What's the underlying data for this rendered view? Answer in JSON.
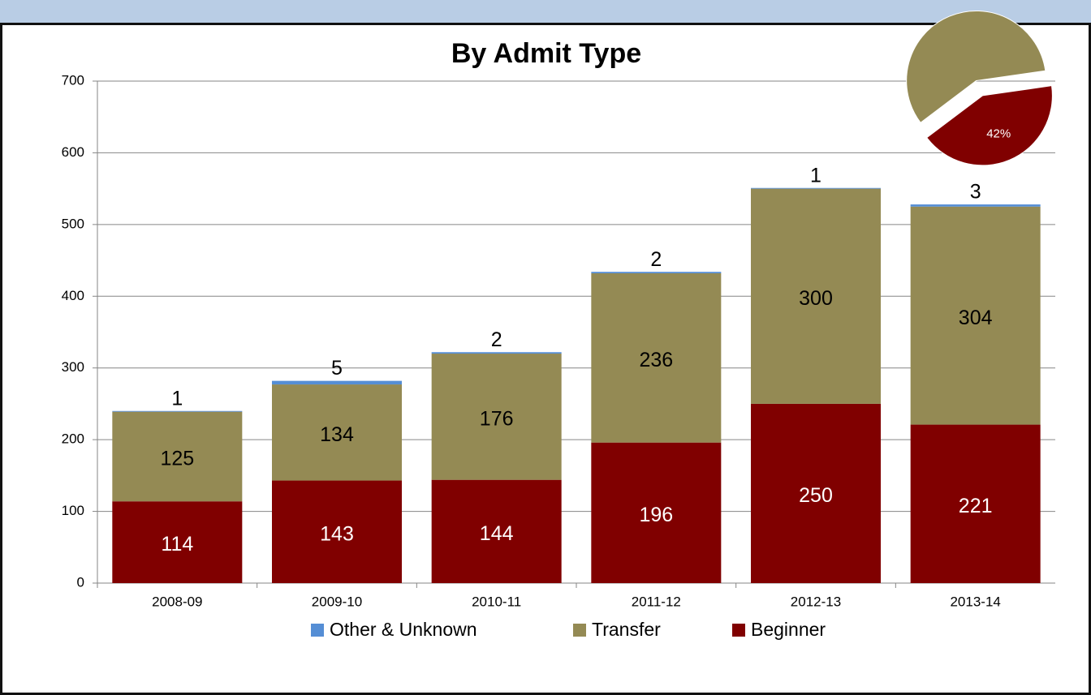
{
  "chart_data": [
    {
      "type": "bar",
      "title": "By Admit Type",
      "categories": [
        "2008-09",
        "2009-10",
        "2010-11",
        "2011-12",
        "2012-13",
        "2013-14"
      ],
      "series": [
        {
          "name": "Beginner",
          "color": "#800000",
          "values": [
            114,
            143,
            144,
            196,
            250,
            221
          ]
        },
        {
          "name": "Transfer",
          "color": "#948a54",
          "values": [
            125,
            134,
            176,
            236,
            300,
            304
          ]
        },
        {
          "name": "Other & Unknown",
          "color": "#558ed5",
          "values": [
            1,
            5,
            2,
            2,
            1,
            3
          ]
        }
      ],
      "ylim": [
        0,
        700
      ],
      "yticks": [
        0,
        100,
        200,
        300,
        400,
        500,
        600,
        700
      ],
      "grid": true,
      "legend": "bottom"
    },
    {
      "type": "pie",
      "values": [
        58,
        42
      ],
      "colors": [
        "#948a54",
        "#800000"
      ],
      "value_labels": [
        null,
        "42%"
      ]
    }
  ]
}
